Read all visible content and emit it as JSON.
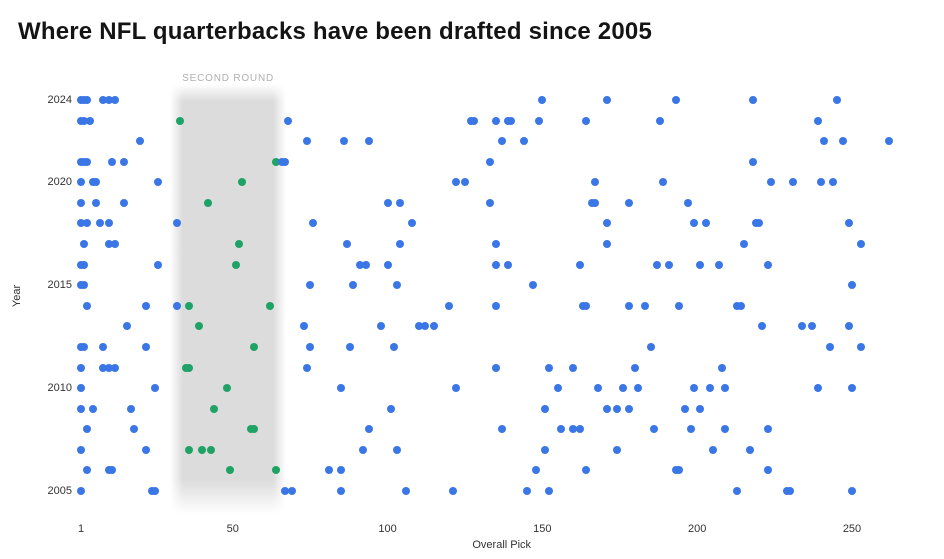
{
  "title": "Where NFL quarterbacks have been drafted since 2005",
  "chart_data": {
    "type": "scatter",
    "title": "Where NFL quarterbacks have been drafted since 2005",
    "xlabel": "Overall Pick",
    "ylabel": "Year",
    "x_ticks": [
      1,
      50,
      100,
      150,
      200,
      250
    ],
    "y_ticks": [
      2024,
      2020,
      2015,
      2010,
      2005
    ],
    "xlim": [
      1,
      265
    ],
    "ylim": [
      2005,
      2024
    ],
    "grid": false,
    "legend": "none",
    "band": {
      "label": "SECOND ROUND",
      "pick_start": 33,
      "pick_end": 64
    },
    "colors": {
      "default_point": "#3b76e7",
      "second_round_point": "#1fa266",
      "band_fill": "#dadada",
      "band_label": "#b1b1b1",
      "title_text": "#141414",
      "axis_text": "#333333"
    },
    "series": [
      {
        "year": 2024,
        "picks": [
          1,
          2,
          3,
          8,
          10,
          12,
          150,
          171,
          193,
          218,
          245
        ]
      },
      {
        "year": 2023,
        "picks": [
          1,
          2,
          4,
          33,
          68,
          127,
          128,
          135,
          139,
          140,
          149,
          164,
          188,
          239
        ]
      },
      {
        "year": 2022,
        "picks": [
          20,
          74,
          86,
          94,
          137,
          144,
          241,
          247,
          262
        ]
      },
      {
        "year": 2021,
        "picks": [
          1,
          2,
          3,
          11,
          15,
          64,
          66,
          67,
          133,
          218
        ]
      },
      {
        "year": 2020,
        "picks": [
          1,
          5,
          6,
          26,
          53,
          122,
          125,
          167,
          189,
          224,
          231,
          240,
          244
        ]
      },
      {
        "year": 2019,
        "picks": [
          1,
          6,
          15,
          42,
          100,
          104,
          133,
          166,
          167,
          178,
          197
        ]
      },
      {
        "year": 2018,
        "picks": [
          1,
          3,
          7,
          10,
          32,
          76,
          108,
          171,
          199,
          203,
          219,
          220,
          249
        ]
      },
      {
        "year": 2017,
        "picks": [
          2,
          10,
          12,
          52,
          87,
          104,
          135,
          171,
          215,
          253
        ]
      },
      {
        "year": 2016,
        "picks": [
          1,
          2,
          26,
          51,
          91,
          93,
          100,
          135,
          139,
          162,
          187,
          191,
          201,
          207,
          223
        ]
      },
      {
        "year": 2015,
        "picks": [
          1,
          2,
          75,
          89,
          103,
          147,
          250
        ]
      },
      {
        "year": 2014,
        "picks": [
          3,
          22,
          32,
          36,
          62,
          120,
          135,
          163,
          164,
          178,
          183,
          194,
          213,
          214
        ]
      },
      {
        "year": 2013,
        "picks": [
          16,
          39,
          73,
          98,
          110,
          112,
          115,
          221,
          234,
          237,
          249
        ]
      },
      {
        "year": 2012,
        "picks": [
          1,
          2,
          8,
          22,
          57,
          75,
          88,
          102,
          185,
          243,
          253
        ]
      },
      {
        "year": 2011,
        "picks": [
          1,
          8,
          10,
          12,
          35,
          36,
          74,
          135,
          152,
          160,
          180,
          208
        ]
      },
      {
        "year": 2010,
        "picks": [
          1,
          25,
          48,
          85,
          122,
          155,
          168,
          176,
          181,
          199,
          204,
          209,
          239,
          250
        ]
      },
      {
        "year": 2009,
        "picks": [
          1,
          5,
          17,
          44,
          101,
          151,
          171,
          174,
          178,
          196,
          201
        ]
      },
      {
        "year": 2008,
        "picks": [
          3,
          18,
          56,
          57,
          94,
          137,
          156,
          160,
          162,
          186,
          198,
          209,
          223
        ]
      },
      {
        "year": 2007,
        "picks": [
          1,
          22,
          36,
          40,
          43,
          92,
          103,
          151,
          174,
          205,
          217
        ]
      },
      {
        "year": 2006,
        "picks": [
          3,
          10,
          11,
          49,
          64,
          81,
          85,
          148,
          164,
          193,
          194,
          223
        ]
      },
      {
        "year": 2005,
        "picks": [
          1,
          24,
          25,
          67,
          69,
          85,
          106,
          121,
          145,
          152,
          213,
          229,
          230,
          250
        ]
      }
    ]
  }
}
